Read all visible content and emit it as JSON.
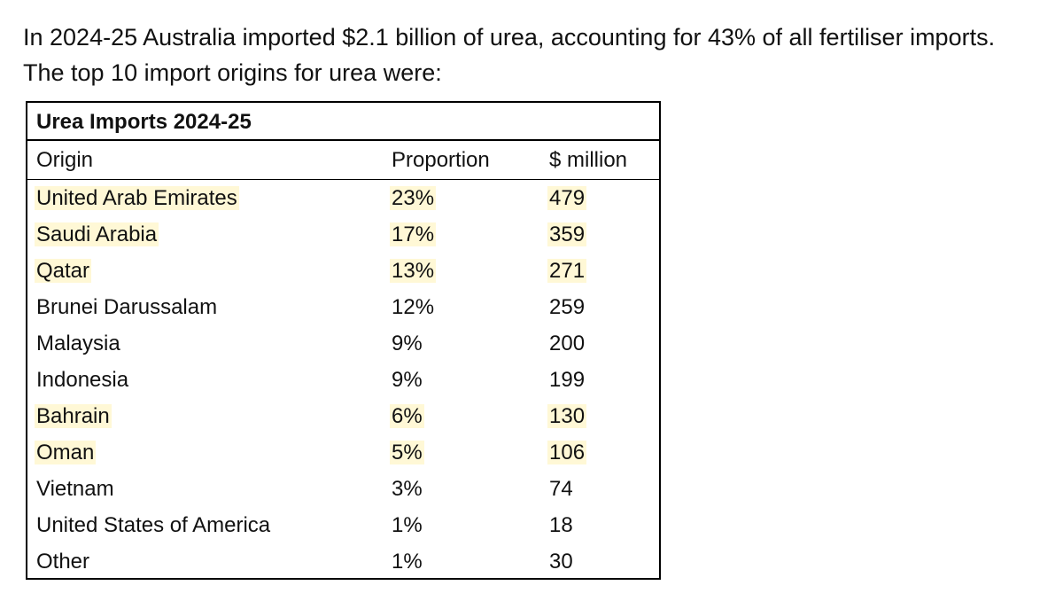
{
  "intro": {
    "text": "In 2024-25 Australia imported $2.1 billion of urea, accounting for 43% of all fertiliser imports. The top 10 import origins for urea were:"
  },
  "table": {
    "title": "Urea Imports 2024-25",
    "headers": {
      "origin": "Origin",
      "proportion": "Proportion",
      "value": "$ million"
    },
    "highlight_color": "#fff8d6",
    "rows": [
      {
        "origin": "United Arab Emirates",
        "proportion": "23%",
        "value": "479",
        "highlighted": true
      },
      {
        "origin": "Saudi Arabia",
        "proportion": "17%",
        "value": "359",
        "highlighted": true
      },
      {
        "origin": "Qatar",
        "proportion": "13%",
        "value": "271",
        "highlighted": true
      },
      {
        "origin": "Brunei Darussalam",
        "proportion": "12%",
        "value": "259",
        "highlighted": false
      },
      {
        "origin": "Malaysia",
        "proportion": "9%",
        "value": "200",
        "highlighted": false
      },
      {
        "origin": "Indonesia",
        "proportion": "9%",
        "value": "199",
        "highlighted": false
      },
      {
        "origin": "Bahrain",
        "proportion": "6%",
        "value": "130",
        "highlighted": true
      },
      {
        "origin": "Oman",
        "proportion": "5%",
        "value": "106",
        "highlighted": true
      },
      {
        "origin": "Vietnam",
        "proportion": "3%",
        "value": "74",
        "highlighted": false
      },
      {
        "origin": "United States of America",
        "proportion": "1%",
        "value": "18",
        "highlighted": false
      },
      {
        "origin": "Other",
        "proportion": "1%",
        "value": "30",
        "highlighted": false
      }
    ]
  }
}
